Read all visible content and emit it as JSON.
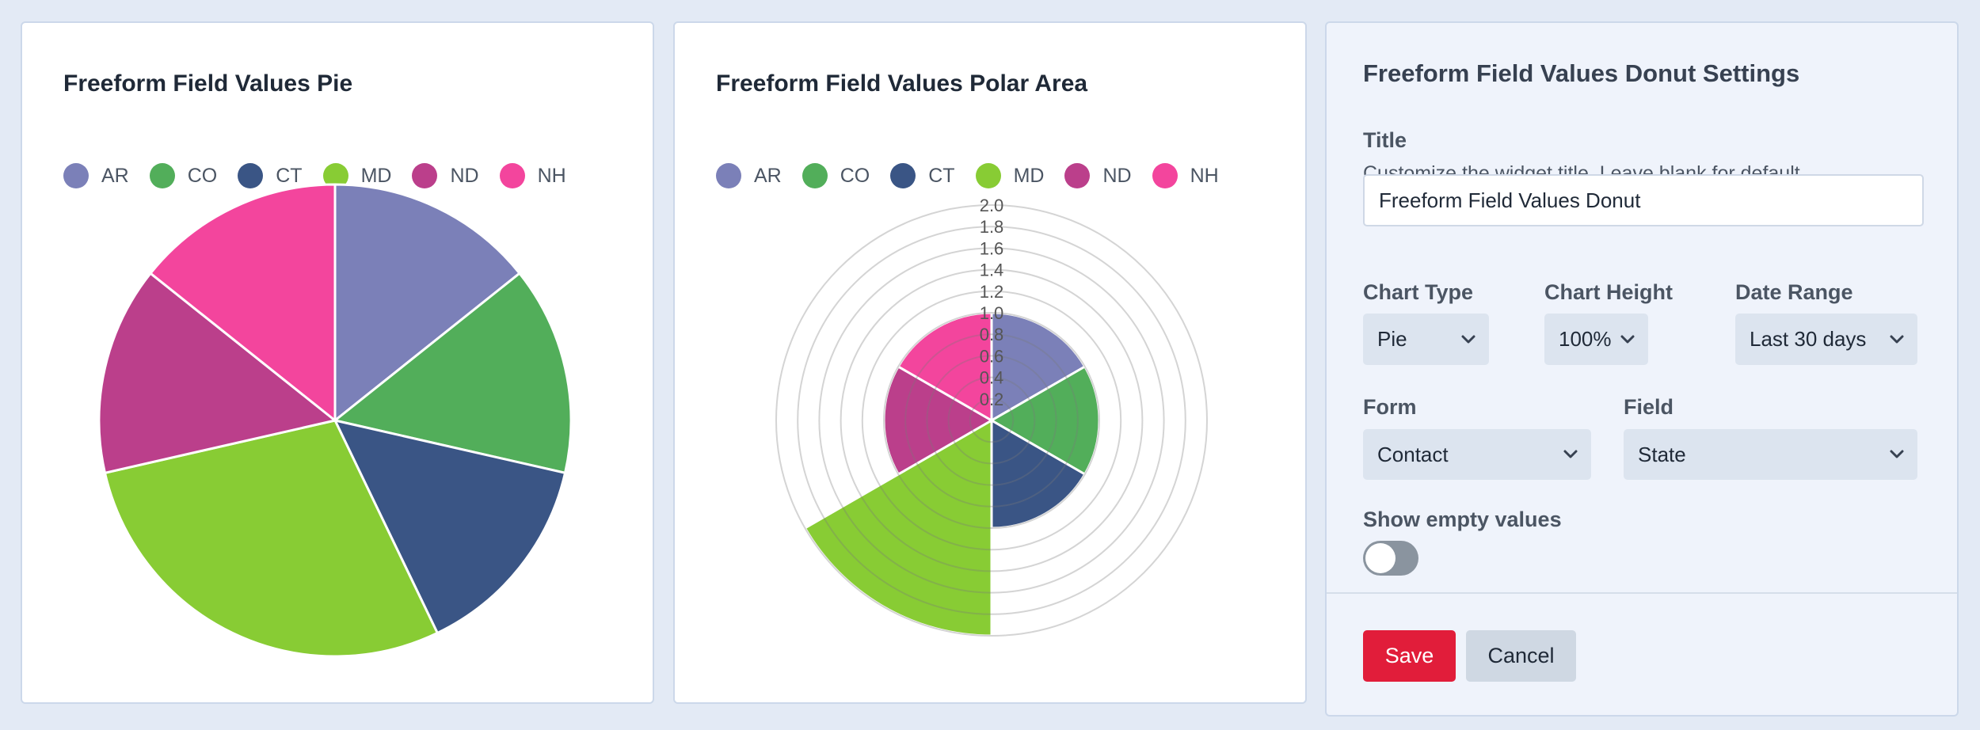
{
  "pie_widget": {
    "title": "Freeform Field Values Pie"
  },
  "polar_widget": {
    "title": "Freeform Field Values Polar Area",
    "tick_labels": [
      "2.0",
      "1.8",
      "1.6",
      "1.4",
      "1.2",
      "1.0",
      "0.8",
      "0.6",
      "0.4",
      "0.2"
    ]
  },
  "legend": [
    {
      "label": "AR",
      "color": "#7b80b8"
    },
    {
      "label": "CO",
      "color": "#52ae5a"
    },
    {
      "label": "CT",
      "color": "#3a5585"
    },
    {
      "label": "MD",
      "color": "#88cc34"
    },
    {
      "label": "ND",
      "color": "#bb3f8b"
    },
    {
      "label": "NH",
      "color": "#f3459d"
    }
  ],
  "chart_data": [
    {
      "type": "pie",
      "title": "Freeform Field Values Pie",
      "categories": [
        "AR",
        "CO",
        "CT",
        "MD",
        "ND",
        "NH"
      ],
      "values": [
        1,
        1,
        1,
        2,
        1,
        1
      ],
      "colors": [
        "#7b80b8",
        "#52ae5a",
        "#3a5585",
        "#88cc34",
        "#bb3f8b",
        "#f3459d"
      ],
      "legend_position": "top"
    },
    {
      "type": "polar-area",
      "title": "Freeform Field Values Polar Area",
      "categories": [
        "AR",
        "CO",
        "CT",
        "MD",
        "ND",
        "NH"
      ],
      "values": [
        1,
        1,
        1,
        2,
        1,
        1
      ],
      "colors": [
        "#7b80b8",
        "#52ae5a",
        "#3a5585",
        "#88cc34",
        "#bb3f8b",
        "#f3459d"
      ],
      "r_range": [
        0,
        2.0
      ],
      "r_ticks": [
        0.2,
        0.4,
        0.6,
        0.8,
        1.0,
        1.2,
        1.4,
        1.6,
        1.8,
        2.0
      ],
      "grid": true,
      "legend_position": "top"
    }
  ],
  "settings": {
    "panel_title": "Freeform Field Values Donut Settings",
    "title_label": "Title",
    "title_help": "Customize the widget title. Leave blank for default.",
    "title_value": "Freeform Field Values Donut",
    "chart_type_label": "Chart Type",
    "chart_type_value": "Pie",
    "chart_height_label": "Chart Height",
    "chart_height_value": "100%",
    "date_range_label": "Date Range",
    "date_range_value": "Last 30 days",
    "form_label": "Form",
    "form_value": "Contact",
    "field_label": "Field",
    "field_value": "State",
    "show_empty_label": "Show empty values",
    "show_empty_enabled": false,
    "save_label": "Save",
    "cancel_label": "Cancel"
  }
}
